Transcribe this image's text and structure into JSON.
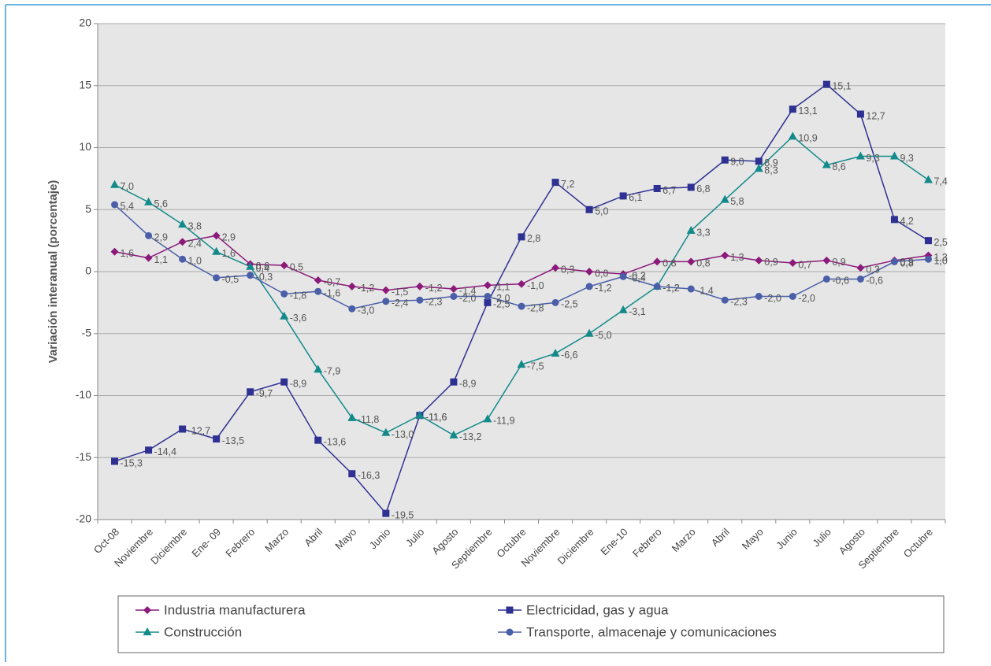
{
  "chart_data": {
    "type": "line",
    "ylabel": "Variación interanual (porcentaje)",
    "categories": [
      "Oct-08",
      "Noviembre",
      "Diciembre",
      "Ene- 09",
      "Febrero",
      "Marzo",
      "Abril",
      "Mayo",
      "Junio",
      "Julio",
      "Agosto",
      "Septiembre",
      "Octubre",
      "Noviembre",
      "Diciembre",
      "Ene-10",
      "Febrero",
      "Marzo",
      "Abril",
      "Mayo",
      "Junio",
      "Julio",
      "Agosto",
      "Septiembre",
      "Octubre"
    ],
    "ylim": [
      -20,
      20
    ],
    "yticks": [
      -20,
      -15,
      -10,
      -5,
      0,
      5,
      10,
      15,
      20
    ],
    "grid": true,
    "series": [
      {
        "name": "Industria manufacturera",
        "color": "#8b1a7a",
        "marker": "diamond",
        "values": [
          1.6,
          1.1,
          2.4,
          2.9,
          0.6,
          0.5,
          -0.7,
          -1.2,
          -1.5,
          -1.2,
          -1.4,
          -1.1,
          -1.0,
          0.3,
          0.0,
          -0.2,
          0.8,
          0.8,
          1.3,
          0.9,
          0.7,
          0.9,
          0.3,
          0.9,
          1.3
        ],
        "value_labels": [
          "1,6",
          "1,1",
          "2,4",
          "2,9",
          "0,6",
          "0,5",
          "-0,7",
          "-1,2",
          "-1,5",
          "-1,2",
          "-1,4",
          "-1,1",
          "-1,0",
          "0,3",
          "0,0",
          "-0,2",
          "0,8",
          "0,8",
          "1,3",
          "0,9",
          "0,7",
          "0,9",
          "0,3",
          "0,9",
          "1,3"
        ]
      },
      {
        "name": "Electricidad, gas y agua",
        "color": "#2e3192",
        "marker": "square",
        "values": [
          -15.3,
          -14.4,
          -12.7,
          -13.5,
          -9.7,
          -8.9,
          -13.6,
          -16.3,
          -19.5,
          -11.6,
          -8.9,
          -2.5,
          2.8,
          7.2,
          5.0,
          6.1,
          6.7,
          6.8,
          9.0,
          8.9,
          13.1,
          15.1,
          12.7,
          4.2,
          2.5
        ],
        "value_labels": [
          "-15,3",
          "-14,4",
          "-12,7",
          "-13,5",
          "-9,7",
          "-8,9",
          "-13,6",
          "-16,3",
          "-19,5",
          "-11,6",
          "-8,9",
          "-2,5",
          "2,8",
          "7,2",
          "5,0",
          "6,1",
          "6,7",
          "6,8",
          "9,0",
          "8,9",
          "13,1",
          "15,1",
          "12,7",
          "4,2",
          "2,5"
        ]
      },
      {
        "name": "Construcción",
        "color": "#138a8a",
        "marker": "triangle",
        "values": [
          7.0,
          5.6,
          3.8,
          1.6,
          0.4,
          -3.6,
          -7.9,
          -11.8,
          -13.0,
          -11.6,
          -13.2,
          -11.9,
          -7.5,
          -6.6,
          -5.0,
          -3.1,
          -1.2,
          3.3,
          5.8,
          8.3,
          10.9,
          8.6,
          9.3,
          9.3,
          7.4
        ],
        "value_labels": [
          "7,0",
          "5,6",
          "3,8",
          "1,6",
          "0,4",
          "-3,6",
          "-7,9",
          "-11,8",
          "-13,0",
          "-11,6",
          "-13,2",
          "-11,9",
          "-7,5",
          "-6,6",
          "-5,0",
          "-3,1",
          "-1,2",
          "3,3",
          "5,8",
          "8,3",
          "10,9",
          "8,6",
          "9,3",
          "9,3",
          "7,4"
        ]
      },
      {
        "name": "Transporte, almacenaje y comunicaciones",
        "color": "#4a5fa8",
        "marker": "circle",
        "values": [
          5.4,
          2.9,
          1.0,
          -0.5,
          -0.3,
          -1.8,
          -1.6,
          -3.0,
          -2.4,
          -2.3,
          -2.0,
          -2.0,
          -2.8,
          -2.5,
          -1.2,
          -0.4,
          -1.2,
          -1.4,
          -2.3,
          -2.0,
          -2.0,
          -0.6,
          -0.6,
          0.8,
          1.0
        ],
        "value_labels": [
          "5,4",
          "2,9",
          "1,0",
          "-0,5",
          "-0,3",
          "-1,8",
          "-1,6",
          "-3,0",
          "-2,4",
          "-2,3",
          "-2,0",
          "-2,0",
          "-2,8",
          "-2,5",
          "-1,2",
          "-0,4",
          "-1,2",
          "-1,4",
          "-2,3",
          "-2,0",
          "-2,0",
          "-0,6",
          "-0,6",
          "0,8",
          "1,0"
        ]
      }
    ]
  }
}
